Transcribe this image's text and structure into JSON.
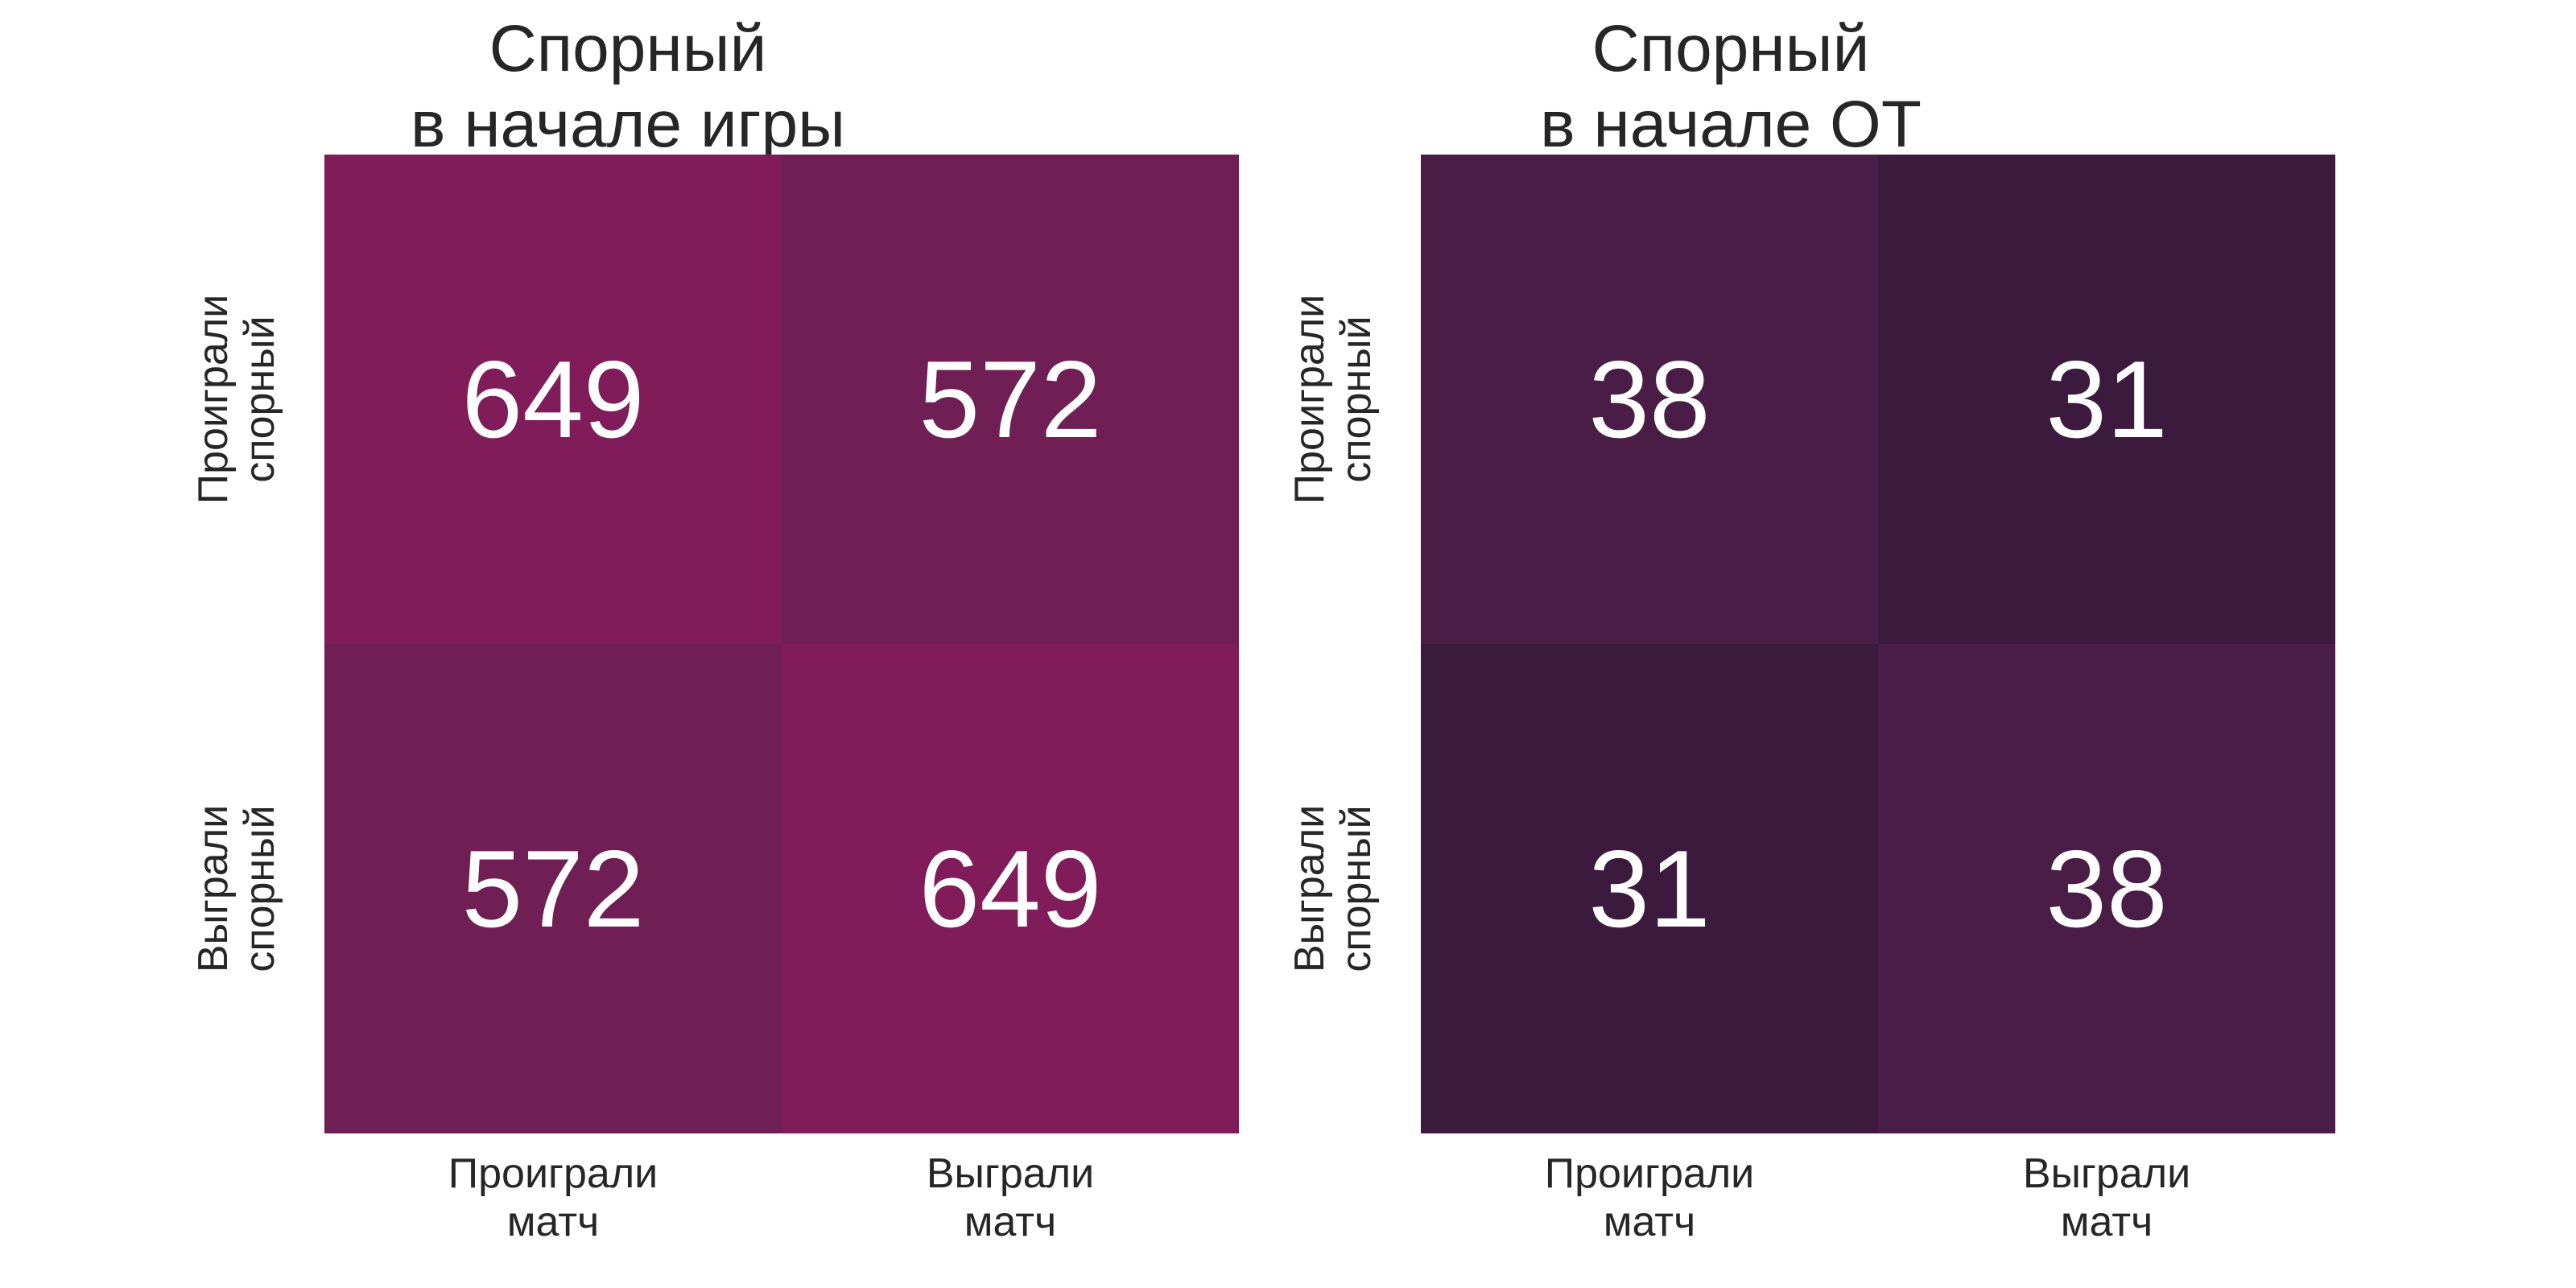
{
  "chart_data": [
    {
      "type": "heatmap",
      "title": [
        "Спорный",
        "в начале игры"
      ],
      "xlabel": "",
      "ylabel": "",
      "x_categories": [
        [
          "Проиграли",
          "матч"
        ],
        [
          "Выграли",
          "матч"
        ]
      ],
      "y_categories": [
        [
          "Проиграли",
          "спорный"
        ],
        [
          "Выграли",
          "спорный"
        ]
      ],
      "values": [
        [
          649,
          572
        ],
        [
          572,
          649
        ]
      ],
      "colors": [
        [
          "#801c5a",
          "#701f54"
        ],
        [
          "#701f54",
          "#801c5a"
        ]
      ],
      "legend": "none",
      "grid": false
    },
    {
      "type": "heatmap",
      "title": [
        "Спорный",
        "в начале ОТ"
      ],
      "xlabel": "",
      "ylabel": "",
      "x_categories": [
        [
          "Проиграли",
          "матч"
        ],
        [
          "Выграли",
          "матч"
        ]
      ],
      "y_categories": [
        [
          "Проиграли",
          "спорный"
        ],
        [
          "Выграли",
          "спорный"
        ]
      ],
      "values": [
        [
          38,
          31
        ],
        [
          31,
          38
        ]
      ],
      "colors": [
        [
          "#4a1d46",
          "#3b1a3e"
        ],
        [
          "#3b1a3e",
          "#4a1d46"
        ]
      ],
      "legend": "none",
      "grid": false
    }
  ]
}
